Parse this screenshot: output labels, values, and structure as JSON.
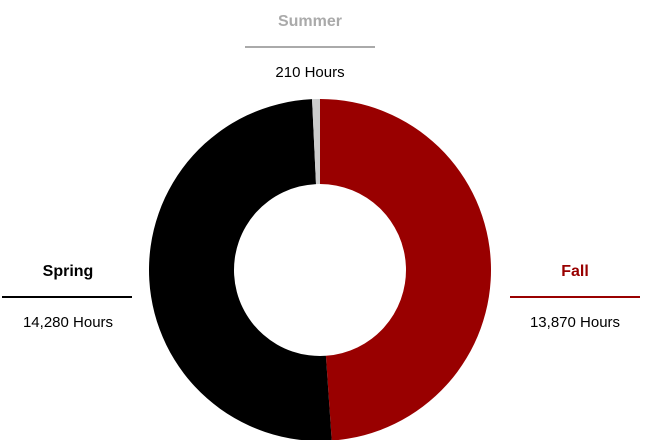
{
  "chart_data": {
    "type": "pie",
    "donut": true,
    "categories": [
      "Fall",
      "Spring",
      "Summer"
    ],
    "values": [
      13870,
      14280,
      210
    ],
    "value_labels": [
      "13,870 Hours",
      "14,280 Hours",
      "210 Hours"
    ],
    "colors": [
      "#990000",
      "#000000",
      "#cccccc"
    ],
    "label_colors": [
      "#990000",
      "#000000",
      "#aaaaaa"
    ]
  }
}
